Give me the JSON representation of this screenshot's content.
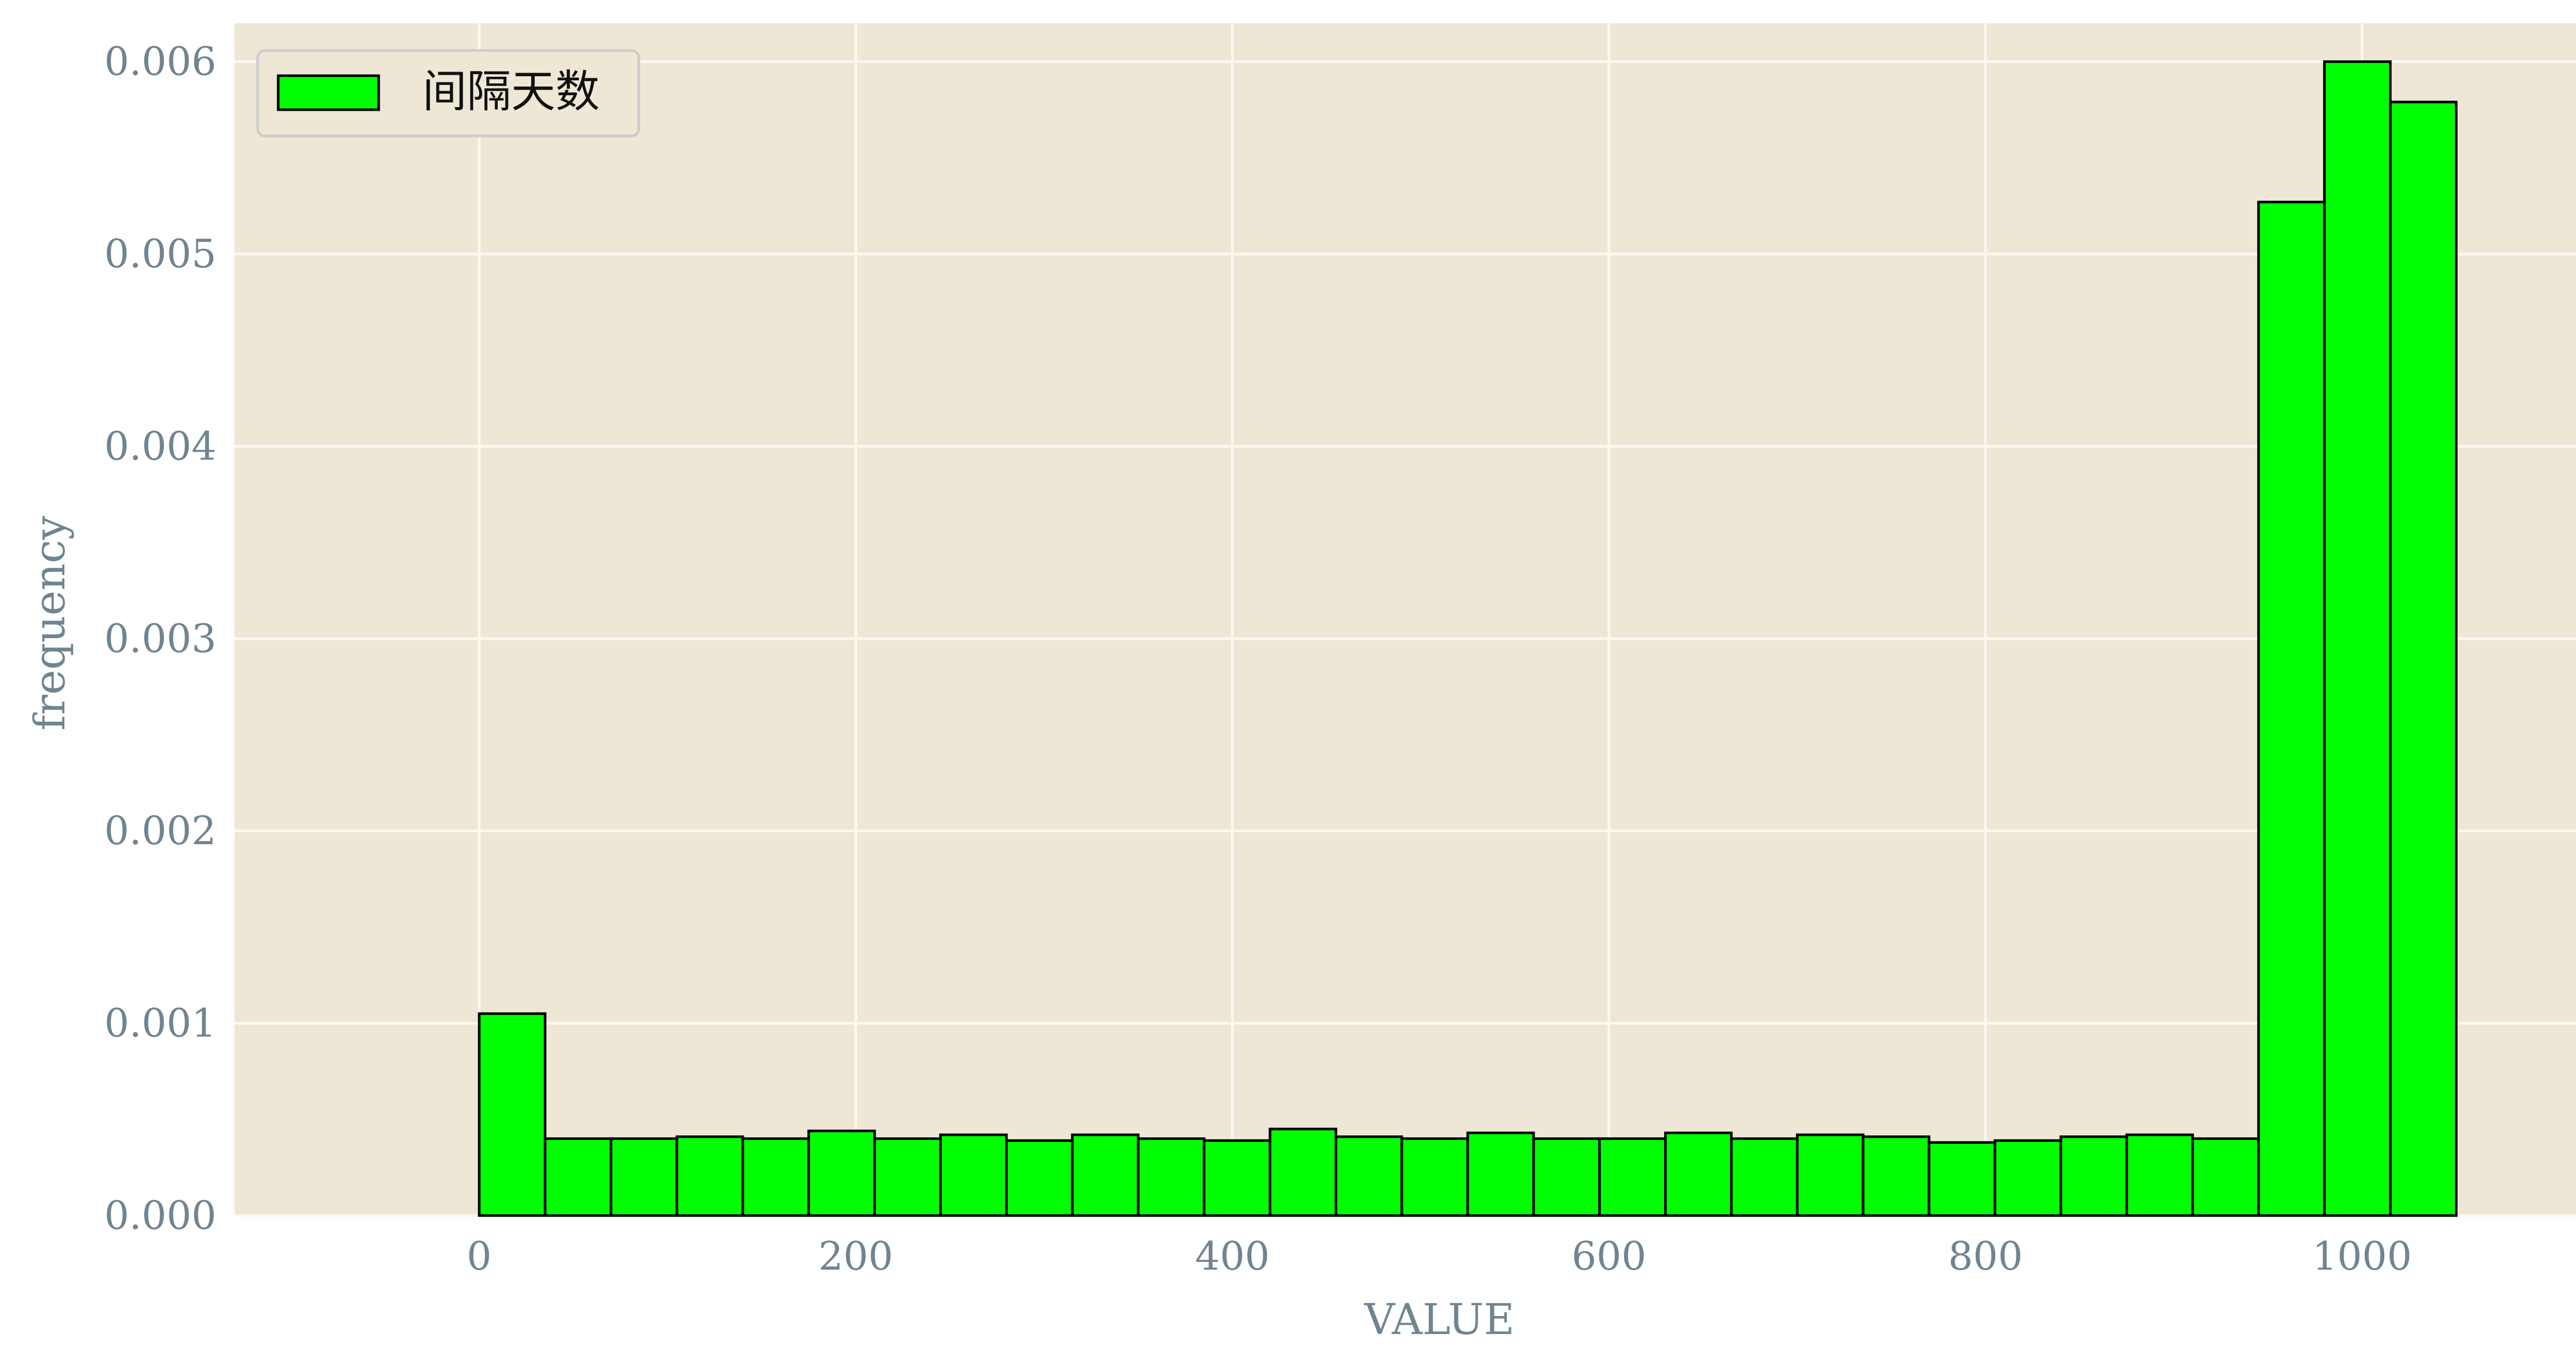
{
  "chart_data": {
    "type": "bar",
    "title": "",
    "xlabel": "VALUE",
    "ylabel": "frequency",
    "xlim": [
      -130,
      1150
    ],
    "ylim": [
      0,
      0.0062
    ],
    "xticks": [
      0,
      200,
      400,
      600,
      800,
      1000
    ],
    "xtick_labels": [
      "0",
      "200",
      "400",
      "600",
      "800",
      "1000"
    ],
    "yticks": [
      0,
      0.001,
      0.002,
      0.003,
      0.004,
      0.005,
      0.006
    ],
    "ytick_labels": [
      "0.000",
      "0.001",
      "0.002",
      "0.003",
      "0.004",
      "0.005",
      "0.006"
    ],
    "grid": true,
    "legend_position": "upper-left",
    "bin_start": 0,
    "bin_width": 35,
    "series": [
      {
        "name": "间隔天数",
        "values": [
          0.00105,
          0.0004,
          0.0004,
          0.00041,
          0.0004,
          0.00044,
          0.0004,
          0.00042,
          0.00039,
          0.00042,
          0.0004,
          0.00039,
          0.00045,
          0.00041,
          0.0004,
          0.00043,
          0.0004,
          0.0004,
          0.00043,
          0.0004,
          0.00042,
          0.00041,
          0.00038,
          0.00039,
          0.00041,
          0.00042,
          0.0004,
          0.00527,
          0.006,
          0.00579
        ]
      }
    ],
    "colors": {
      "bar_fill": "#00ff00",
      "bar_edge": "#000000",
      "plot_background": "#eee7d5",
      "grid": "#fbf9f2",
      "axis_text": "#6f8591",
      "legend_background": "#eee7d5",
      "legend_border": "#cccccc"
    }
  }
}
